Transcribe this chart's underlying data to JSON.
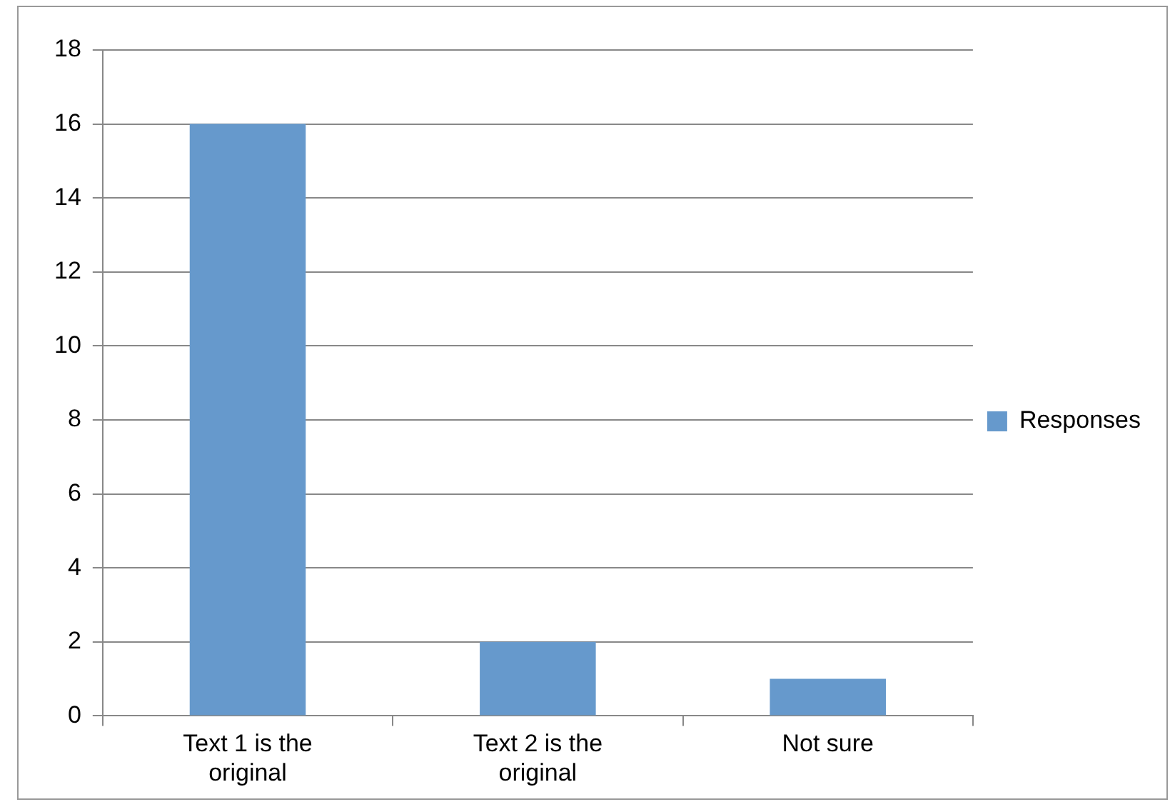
{
  "chart_data": {
    "type": "bar",
    "categories": [
      "Text 1 is the original",
      "Text 2 is the original",
      "Not sure"
    ],
    "series": [
      {
        "name": "Responses",
        "color": "#6699cc",
        "values": [
          16,
          2,
          1
        ]
      }
    ],
    "ylim": [
      0,
      18
    ],
    "yticks": [
      0,
      2,
      4,
      6,
      8,
      10,
      12,
      14,
      16,
      18
    ],
    "grid": "y",
    "legend": "right"
  }
}
